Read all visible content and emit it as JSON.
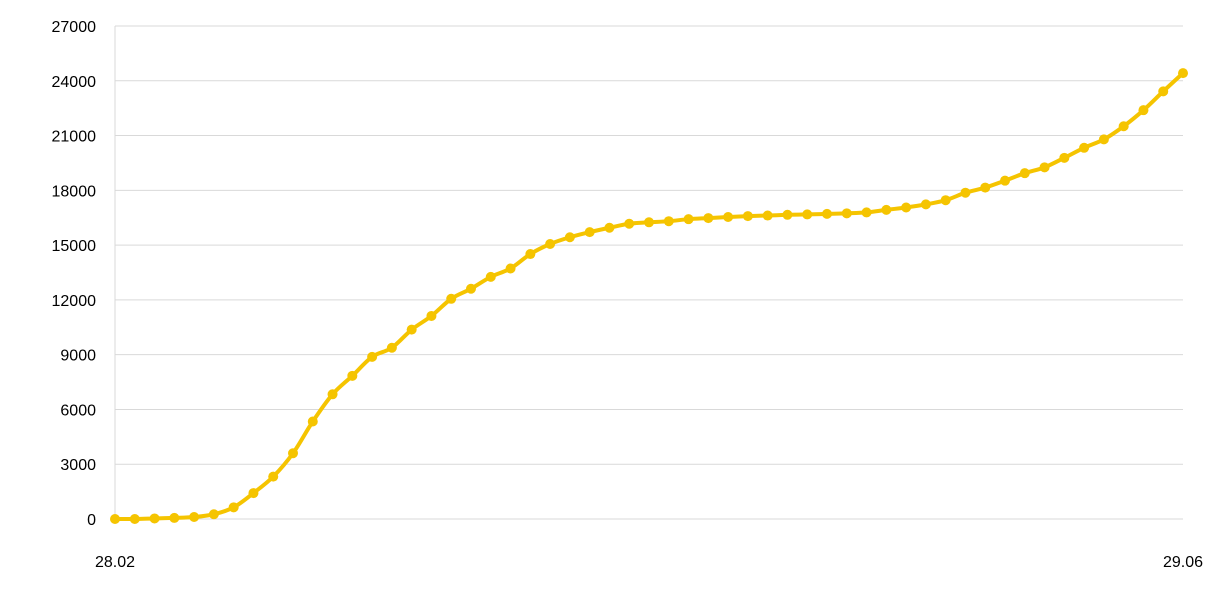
{
  "chart_data": {
    "type": "line",
    "title": "",
    "xlabel": "",
    "ylabel": "",
    "ylim": [
      0,
      27000
    ],
    "yticks": [
      0,
      3000,
      6000,
      9000,
      12000,
      15000,
      18000,
      21000,
      24000,
      27000
    ],
    "ytick_labels": [
      "0",
      "3000",
      "6000",
      "9000",
      "12000",
      "15000",
      "18000",
      "21000",
      "24000",
      "27000"
    ],
    "xtick_labels": [
      "28.02",
      "29.06"
    ],
    "grid": "horizontal",
    "legend": "none",
    "series": [
      {
        "color": "#f5c400",
        "marker": "circle",
        "values": [
          0,
          0,
          30,
          60,
          110,
          260,
          640,
          1420,
          2320,
          3600,
          5340,
          6830,
          7840,
          8880,
          9380,
          10370,
          11120,
          12060,
          12610,
          13260,
          13720,
          14510,
          15060,
          15430,
          15710,
          15950,
          16170,
          16250,
          16310,
          16420,
          16480,
          16540,
          16590,
          16620,
          16660,
          16680,
          16710,
          16740,
          16790,
          16930,
          17060,
          17230,
          17460,
          17870,
          18150,
          18530,
          18940,
          19260,
          19780,
          20330,
          20790,
          21510,
          22390,
          23420,
          24420
        ]
      }
    ]
  }
}
